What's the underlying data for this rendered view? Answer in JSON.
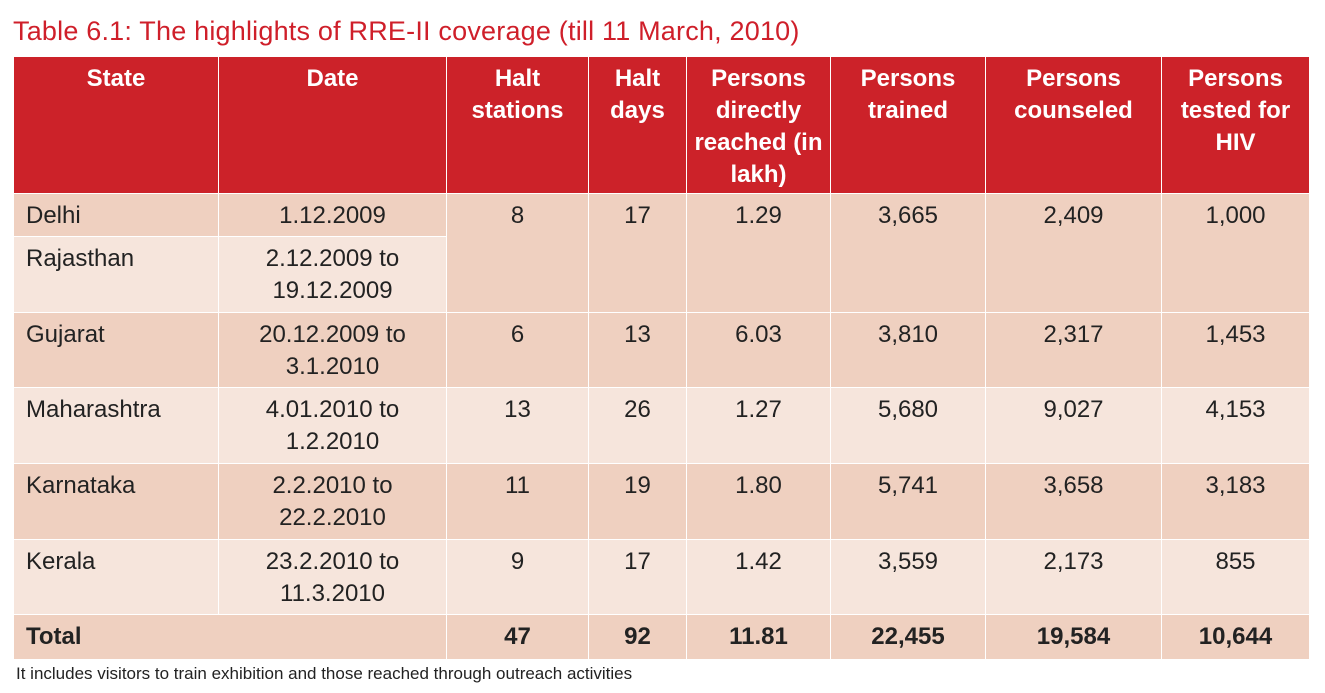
{
  "title": "Table 6.1: The highlights of RRE-II coverage (till 11 March, 2010)",
  "headers": [
    "State",
    "Date",
    "Halt stations",
    "Halt days",
    "Persons directly reached (in lakh)",
    "Persons trained",
    "Persons counseled",
    "Persons tested for HIV"
  ],
  "rows": [
    {
      "state": "Delhi",
      "date": "1.12.2009",
      "halt_stations": "8",
      "halt_days": "17",
      "reached": "1.29",
      "trained": "3,665",
      "counseled": "2,409",
      "tested": "1,000"
    },
    {
      "state": "Rajasthan",
      "date": "2.12.2009 to 19.12.2009"
    },
    {
      "state": "Gujarat",
      "date": "20.12.2009 to 3.1.2010",
      "halt_stations": "6",
      "halt_days": "13",
      "reached": "6.03",
      "trained": "3,810",
      "counseled": "2,317",
      "tested": "1,453"
    },
    {
      "state": "Maharashtra",
      "date": "4.01.2010 to 1.2.2010",
      "halt_stations": "13",
      "halt_days": "26",
      "reached": "1.27",
      "trained": "5,680",
      "counseled": "9,027",
      "tested": "4,153"
    },
    {
      "state": "Karnataka",
      "date": "2.2.2010 to 22.2.2010",
      "halt_stations": "11",
      "halt_days": "19",
      "reached": "1.80",
      "trained": "5,741",
      "counseled": "3,658",
      "tested": "3,183"
    },
    {
      "state": "Kerala",
      "date": "23.2.2010 to 11.3.2010",
      "halt_stations": "9",
      "halt_days": "17",
      "reached": "1.42",
      "trained": "3,559",
      "counseled": "2,173",
      "tested": "855"
    }
  ],
  "total": {
    "label": "Total",
    "halt_stations": "47",
    "halt_days": "92",
    "reached": "11.81",
    "trained": "22,455",
    "counseled": "19,584",
    "tested": "10,644"
  },
  "footnote": "It includes visitors to train exhibition and those reached through outreach activities",
  "colors": {
    "header_bg": "#cc2229",
    "row_dark": "#efd0c0",
    "row_light": "#f6e5dc",
    "title": "#cf1f2a"
  }
}
